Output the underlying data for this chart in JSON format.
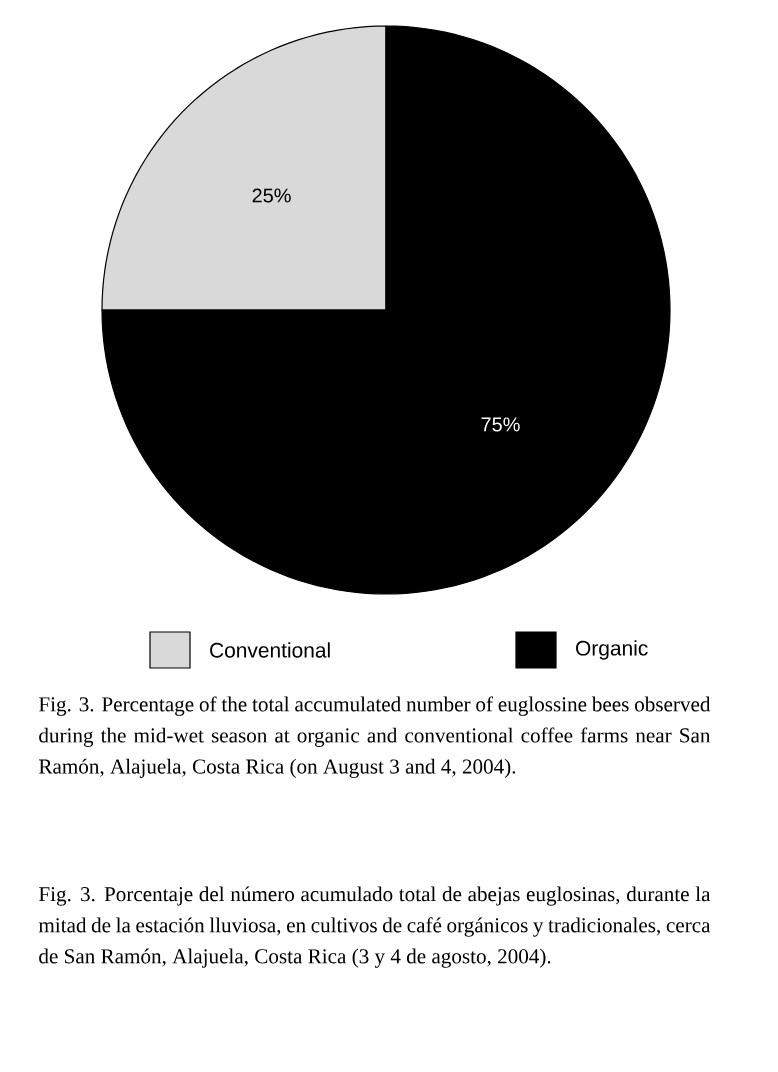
{
  "chart_data": {
    "type": "pie",
    "categories": [
      "Conventional",
      "Organic"
    ],
    "values": [
      25,
      75
    ],
    "colors": [
      "#d9d9d9",
      "#000000"
    ],
    "value_labels": [
      "25%",
      "75%"
    ],
    "legend": "bottom",
    "annotations": [
      "Fig. 3. Percentage of the total accumulated number of euglossine bees observed during the mid-wet season at organic and conventional coffee farms near San Ramón, Alajuela, Costa Rica (on August 3 and 4, 2004).",
      "Fig. 3. Porcentaje del  número acumulado total de abejas euglosinas, durante la mitad de la estación lluviosa, en cultivos de café orgánicos y tradicionales, cerca de San Ramón, Alajuela, Costa Rica (3 y 4 de agosto, 2004)."
    ]
  }
}
